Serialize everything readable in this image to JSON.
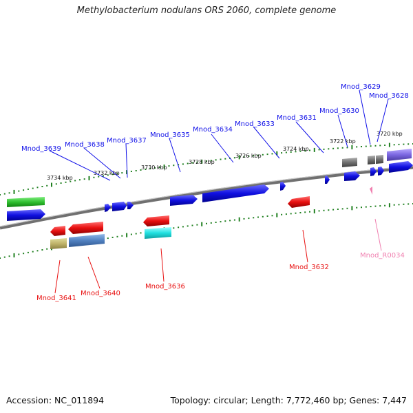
{
  "title": "Methylobacterium nodulans ORS 2060, complete genome",
  "footer": {
    "accession": "Accession: NC_011894",
    "topology": "Topology: circular; Length: 7,772,460 bp; Genes: 7,447"
  },
  "kbp_labels": [
    "3734 kbp",
    "3732 kbp",
    "3730 kbp",
    "3728 kbp",
    "3726 kbp",
    "3724 kbp",
    "3722 kbp",
    "3720 kbp"
  ],
  "top_labels": [
    "Mnod_3639",
    "Mnod_3638",
    "Mnod_3637",
    "Mnod_3635",
    "Mnod_3634",
    "Mnod_3633",
    "Mnod_3631",
    "Mnod_3630",
    "Mnod_3629",
    "Mnod_3628"
  ],
  "bottom_labels": [
    "Mnod_3641",
    "Mnod_3640",
    "Mnod_3636",
    "Mnod_3632",
    "Mnod_R0034"
  ],
  "colors": {
    "forward": "#1010e8",
    "reverse": "#e81010",
    "rna": "#f080b0",
    "backbone": "#808080",
    "ticks": "#208020"
  }
}
